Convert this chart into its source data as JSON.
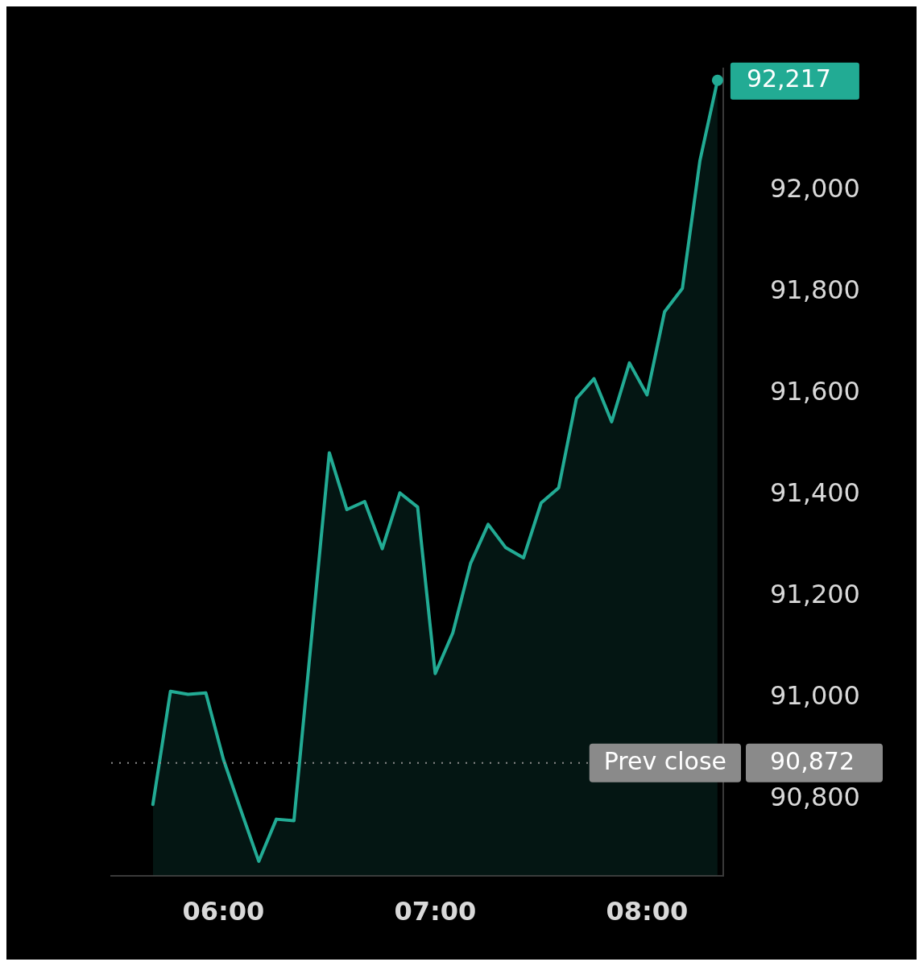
{
  "chart_data": {
    "type": "area",
    "x": [
      5.667,
      5.75,
      5.833,
      5.917,
      6,
      6.083,
      6.167,
      6.25,
      6.333,
      6.5,
      6.583,
      6.667,
      6.75,
      6.833,
      6.917,
      7,
      7.083,
      7.167,
      7.25,
      7.333,
      7.417,
      7.5,
      7.583,
      7.667,
      7.75,
      7.833,
      7.917,
      8,
      8.083,
      8.167,
      8.25,
      8.333
    ],
    "series": [
      {
        "color": "#22ab94",
        "values": [
          90790,
          91013,
          91007,
          91010,
          90879,
          90778,
          90678,
          90761,
          90758,
          91483,
          91371,
          91387,
          91294,
          91404,
          91376,
          91048,
          91128,
          91265,
          91342,
          91296,
          91276,
          91384,
          91414,
          91590,
          91629,
          91544,
          91660,
          91597,
          91761,
          91807,
          92059,
          92217
        ],
        "value_labels": [
          null,
          null,
          null,
          null,
          null,
          null,
          null,
          null,
          null,
          null,
          null,
          null,
          null,
          null,
          null,
          null,
          null,
          null,
          null,
          null,
          null,
          null,
          null,
          null,
          null,
          null,
          null,
          null,
          null,
          null,
          null,
          null
        ]
      },
      {
        "type": "scatter",
        "color": "#22ab94",
        "marker": "circle",
        "x": [
          8.333
        ],
        "values": [
          92217
        ],
        "value_labels": [
          "92,217"
        ]
      }
    ],
    "xlim": [
      5.47,
      8.36
    ],
    "ylim": [
      90650,
      92240
    ],
    "xticks": [
      {
        "value": 6,
        "label": "06:00"
      },
      {
        "value": 7,
        "label": "07:00"
      },
      {
        "value": 8,
        "label": "08:00"
      }
    ],
    "yticks": [
      {
        "value": 90800,
        "label": "90,800"
      },
      {
        "value": 91000,
        "label": "91,000"
      },
      {
        "value": 91200,
        "label": "91,200"
      },
      {
        "value": 91400,
        "label": "91,400"
      },
      {
        "value": 91600,
        "label": "91,600"
      },
      {
        "value": 91800,
        "label": "91,800"
      },
      {
        "value": 92000,
        "label": "92,000"
      }
    ],
    "annotations": [
      "90,872"
    ],
    "ref_lines": [
      {
        "axis": "y",
        "value": 90872,
        "label": "Prev close",
        "color": "#8a8a8a",
        "line_style": "dotted"
      }
    ],
    "grid": false,
    "legend": false,
    "marker": "none",
    "line_style": "solid"
  }
}
